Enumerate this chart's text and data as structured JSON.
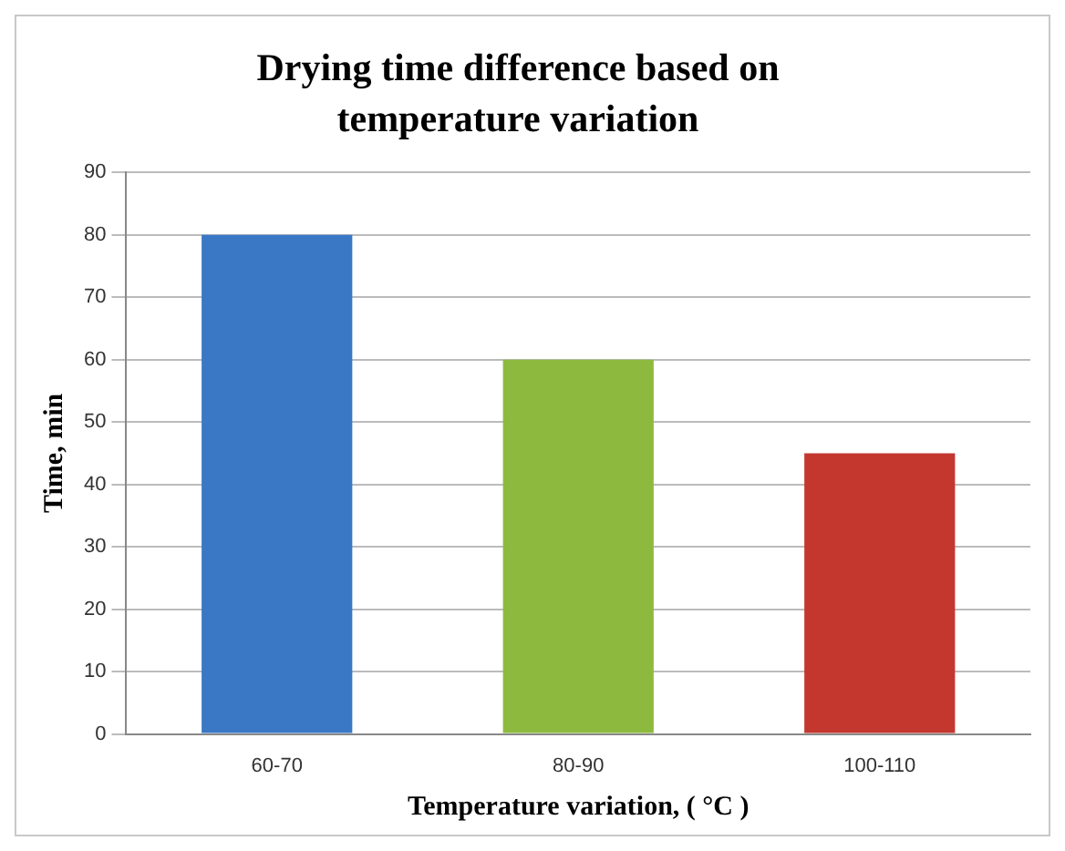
{
  "chart_data": {
    "type": "bar",
    "title": "Drying time difference based on temperature variation",
    "xlabel": "Temperature variation, ( °C )",
    "ylabel": "Time, min",
    "categories": [
      "60-70",
      "80-90",
      "100-110"
    ],
    "values": [
      80,
      60,
      45
    ],
    "colors": [
      "#3a78c6",
      "#8dba3e",
      "#c4372f"
    ],
    "ylim": [
      0,
      90
    ],
    "yticks": [
      0,
      10,
      20,
      30,
      40,
      50,
      60,
      70,
      80,
      90
    ],
    "grid": "y",
    "legend": false
  }
}
